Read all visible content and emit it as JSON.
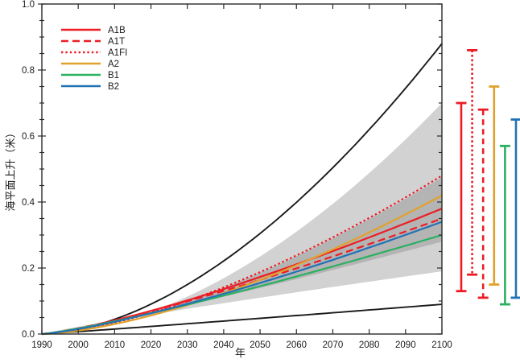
{
  "chart_data": {
    "type": "line",
    "title": "",
    "xlabel": "年",
    "ylabel": "海平面上升（米）",
    "x_range": [
      1990,
      2100
    ],
    "y_range": [
      0.0,
      1.0
    ],
    "x_ticks": [
      {
        "value": 1990,
        "label": "1990"
      },
      {
        "value": 2000,
        "label": "2000"
      },
      {
        "value": 2010,
        "label": "2010"
      },
      {
        "value": 2020,
        "label": "2020"
      },
      {
        "value": 2030,
        "label": "2030"
      },
      {
        "value": 2040,
        "label": "2040"
      },
      {
        "value": 2050,
        "label": "2050"
      },
      {
        "value": 2060,
        "label": "2060"
      },
      {
        "value": 2070,
        "label": "2070"
      },
      {
        "value": 2080,
        "label": "2080"
      },
      {
        "value": 2090,
        "label": "2090"
      },
      {
        "value": 2100,
        "label": "2100"
      }
    ],
    "y_ticks": [
      {
        "value": 0.0,
        "label": "0.0"
      },
      {
        "value": 0.2,
        "label": "0.2"
      },
      {
        "value": 0.4,
        "label": "0.4"
      },
      {
        "value": 0.6,
        "label": "0.6"
      },
      {
        "value": 0.8,
        "label": "0.8"
      },
      {
        "value": 1.0,
        "label": "1.0"
      }
    ],
    "y_minor_step": 0.05,
    "grid": false,
    "legend_position": "top-left",
    "colors": {
      "red": "#ed1c24",
      "orange": "#e1a12c",
      "green": "#2ab061",
      "blue": "#2272b5",
      "band_light": "#d2d2d2",
      "band_dark": "#b4b4b4",
      "envelope_line": "#1a1a1a",
      "frame": "#2b2b2b"
    },
    "series": [
      {
        "name": "A1B",
        "color": "#ed1c24",
        "dash": "solid",
        "start_1990": 0.0,
        "end_2100": 0.38,
        "curve_exponent": 1.3
      },
      {
        "name": "A1T",
        "color": "#ed1c24",
        "dash": "dashed",
        "start_1990": 0.0,
        "end_2100": 0.35,
        "curve_exponent": 1.25
      },
      {
        "name": "A1FI",
        "color": "#ed1c24",
        "dash": "dotted",
        "start_1990": 0.0,
        "end_2100": 0.48,
        "curve_exponent": 1.55
      },
      {
        "name": "A2",
        "color": "#e1a12c",
        "dash": "solid",
        "start_1990": 0.0,
        "end_2100": 0.42,
        "curve_exponent": 1.55
      },
      {
        "name": "B1",
        "color": "#2ab061",
        "dash": "solid",
        "start_1990": 0.0,
        "end_2100": 0.3,
        "curve_exponent": 1.2
      },
      {
        "name": "B2",
        "color": "#2272b5",
        "dash": "solid",
        "start_1990": 0.0,
        "end_2100": 0.34,
        "curve_exponent": 1.3
      }
    ],
    "envelopes": [
      {
        "name": "outer-range-lines",
        "kind": "line-pair",
        "color": "#1a1a1a",
        "top_end_2100": 0.88,
        "top_exponent": 1.75,
        "bottom_end_2100": 0.09,
        "bottom_exponent": 1.05
      },
      {
        "name": "all-models-range-band",
        "kind": "band",
        "fill": "#d2d2d2",
        "top_end_2100": 0.7,
        "top_exponent": 1.8,
        "bottom_end_2100": 0.19,
        "bottom_exponent": 0.9
      },
      {
        "name": "model-average-range-band",
        "kind": "band",
        "fill": "#b4b4b4",
        "top_end_2100": 0.475,
        "top_exponent": 1.55,
        "bottom_end_2100": 0.28,
        "bottom_exponent": 1.15
      }
    ],
    "range_bars_2100": [
      {
        "name": "A1B",
        "color": "#ed1c24",
        "dash": "solid",
        "min": 0.13,
        "max": 0.7
      },
      {
        "name": "A1FI",
        "color": "#ed1c24",
        "dash": "dotted",
        "min": 0.18,
        "max": 0.86
      },
      {
        "name": "A1T",
        "color": "#ed1c24",
        "dash": "dashed",
        "min": 0.11,
        "max": 0.68
      },
      {
        "name": "A2",
        "color": "#e1a12c",
        "dash": "solid",
        "min": 0.15,
        "max": 0.75
      },
      {
        "name": "B1",
        "color": "#2ab061",
        "dash": "solid",
        "min": 0.09,
        "max": 0.57
      },
      {
        "name": "B2",
        "color": "#2272b5",
        "dash": "solid",
        "min": 0.11,
        "max": 0.65
      }
    ]
  }
}
